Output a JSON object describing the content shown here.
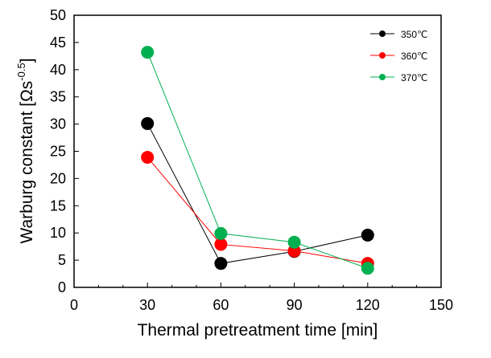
{
  "chart_data": {
    "type": "line",
    "title": "",
    "xlabel": "Thermal pretreatment time [min]",
    "ylabel_main": "Warburg constant [Ωs",
    "ylabel_exp": "-0.5",
    "ylabel_close": "]",
    "xlim": [
      0,
      150
    ],
    "ylim": [
      0,
      50
    ],
    "x_ticks": [
      0,
      30,
      60,
      90,
      120,
      150
    ],
    "y_ticks": [
      0,
      5,
      10,
      15,
      20,
      25,
      30,
      35,
      40,
      45,
      50
    ],
    "x": [
      30,
      60,
      90,
      120
    ],
    "grid": false,
    "legend_position": "top-right",
    "series": [
      {
        "name": "350℃",
        "color": "#000000",
        "values": [
          30.1,
          4.4,
          6.6,
          9.6
        ]
      },
      {
        "name": "360℃",
        "color": "#ff0000",
        "values": [
          23.9,
          7.9,
          6.7,
          4.4
        ]
      },
      {
        "name": "370℃",
        "color": "#00b050",
        "values": [
          43.2,
          9.9,
          8.3,
          3.5
        ]
      }
    ]
  }
}
